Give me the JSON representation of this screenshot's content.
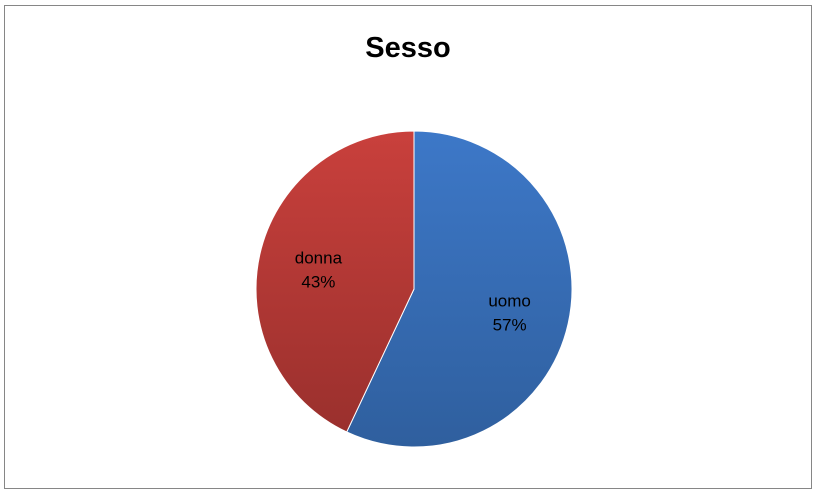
{
  "chart_data": {
    "type": "pie",
    "title": "Sesso",
    "categories": [
      "uomo",
      "donna"
    ],
    "values": [
      57,
      43
    ],
    "labels": [
      "57%",
      "43%"
    ],
    "colors": [
      "#3c73bf",
      "#c0403d"
    ],
    "legend": "none"
  }
}
